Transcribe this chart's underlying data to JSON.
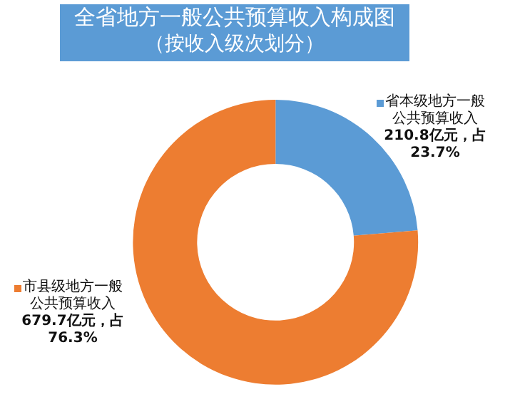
{
  "chart_data": {
    "type": "donut",
    "title": "全省地方一般公共预算收入构成图",
    "subtitle": "（按收入级次划分）",
    "categories": [
      "省本级地方一般公共预算收入",
      "市县级地方一般公共预算收入"
    ],
    "values": [
      210.8,
      679.7
    ],
    "colors": [
      "#5b9bd5",
      "#ed7d31"
    ],
    "value_labels": [
      "210.8亿元，占23.7%",
      "679.7亿元，占76.3%"
    ],
    "legend": "top left"
  }
}
